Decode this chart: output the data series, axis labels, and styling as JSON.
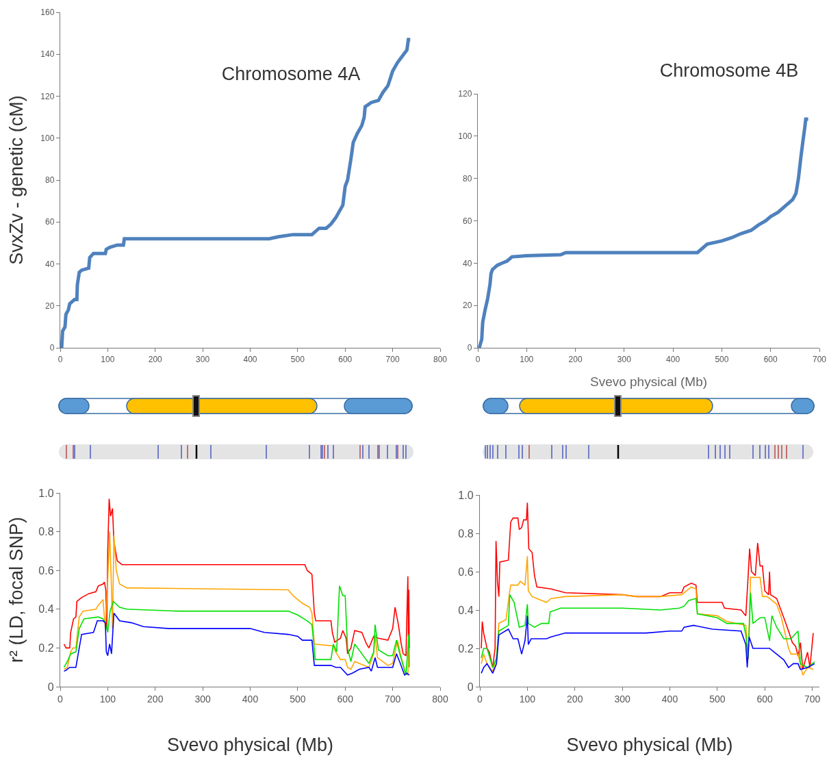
{
  "chart_data": [
    {
      "type": "line",
      "title": "Chromosome 4A",
      "ylabel": "SvxZv - genetic (cM)",
      "xlim": [
        0,
        800
      ],
      "ylim": [
        0,
        160
      ],
      "xticks": [
        0,
        100,
        200,
        300,
        400,
        500,
        600,
        700,
        800
      ],
      "yticks": [
        0,
        20,
        40,
        60,
        80,
        100,
        120,
        140,
        160
      ],
      "grid": false,
      "marker": "none",
      "line_style": "solid",
      "series": [
        {
          "color": "#4f81bd",
          "x": [
            3,
            5,
            10,
            12,
            17,
            20,
            30,
            35,
            36,
            40,
            45,
            60,
            62,
            70,
            95,
            97,
            105,
            120,
            133,
            135,
            300,
            440,
            460,
            490,
            530,
            540,
            545,
            560,
            570,
            580,
            590,
            595,
            600,
            605,
            612,
            617,
            625,
            635,
            640,
            642,
            655,
            670,
            680,
            690,
            700,
            710,
            720,
            730,
            733,
            737
          ],
          "values": [
            0,
            8,
            10,
            16,
            18,
            21,
            23,
            23,
            30,
            36,
            37,
            38,
            43,
            45,
            45,
            47,
            48,
            49,
            49,
            52,
            52,
            52,
            53,
            54,
            54,
            56,
            57,
            57,
            59,
            62,
            66,
            68,
            77,
            80,
            90,
            98,
            102,
            106,
            110,
            115,
            117,
            118,
            122,
            125,
            132,
            136,
            139,
            142,
            147,
            147
          ]
        }
      ]
    },
    {
      "type": "line",
      "title": "Chromosome 4B",
      "xlabel": "Svevo physical (Mb)",
      "xlim": [
        0,
        700
      ],
      "ylim": [
        0,
        120
      ],
      "xticks": [
        0,
        100,
        200,
        300,
        400,
        500,
        600,
        700
      ],
      "yticks": [
        0,
        20,
        40,
        60,
        80,
        100,
        120
      ],
      "grid": false,
      "marker": "none",
      "line_style": "solid",
      "series": [
        {
          "color": "#4f81bd",
          "x": [
            3,
            8,
            10,
            15,
            20,
            25,
            27,
            30,
            40,
            50,
            60,
            70,
            100,
            170,
            180,
            450,
            470,
            500,
            520,
            540,
            560,
            575,
            590,
            600,
            615,
            630,
            645,
            652,
            657,
            662,
            667,
            670,
            672,
            677
          ],
          "values": [
            0,
            4,
            12,
            18,
            23,
            30,
            35,
            37,
            39,
            40,
            41,
            43,
            43.5,
            44,
            45,
            45,
            49,
            50.5,
            52,
            54,
            55.5,
            58,
            60,
            62,
            64,
            67,
            70,
            73,
            80,
            90,
            99,
            104,
            108,
            108
          ]
        }
      ]
    },
    {
      "type": "line",
      "ylabel": "r² (LD, focal SNP)",
      "xlabel": "Svevo physical (Mb)",
      "xlim": [
        0,
        800
      ],
      "ylim": [
        0,
        1
      ],
      "xticks": [
        0,
        100,
        200,
        300,
        400,
        500,
        600,
        700,
        800
      ],
      "yticks": [
        0,
        0.2,
        0.4,
        0.6,
        0.8,
        {
          "value": 1,
          "label": "1.0"
        }
      ],
      "grid": false,
      "marker": "none",
      "line_style": "solid",
      "series": [
        {
          "color": "#ff0000",
          "x": [
            8,
            12,
            20,
            22,
            28,
            33,
            35,
            45,
            60,
            75,
            80,
            90,
            93,
            96,
            98,
            100,
            103,
            106,
            110,
            113,
            120,
            130,
            300,
            515,
            520,
            530,
            535,
            538,
            570,
            573,
            578,
            590,
            595,
            602,
            605,
            612,
            620,
            635,
            645,
            650,
            660,
            670,
            690,
            700,
            705,
            712,
            718,
            722,
            728,
            730,
            732,
            733,
            734,
            735
          ],
          "values": [
            0.22,
            0.2,
            0.2,
            0.28,
            0.35,
            0.36,
            0.44,
            0.46,
            0.48,
            0.49,
            0.52,
            0.53,
            0.54,
            0.5,
            0.3,
            0.7,
            0.97,
            0.88,
            0.92,
            0.75,
            0.65,
            0.63,
            0.63,
            0.63,
            0.6,
            0.58,
            0.38,
            0.34,
            0.34,
            0.28,
            0.23,
            0.25,
            0.29,
            0.25,
            0.17,
            0.2,
            0.29,
            0.28,
            0.22,
            0.2,
            0.26,
            0.25,
            0.24,
            0.3,
            0.41,
            0.32,
            0.22,
            0.17,
            0.16,
            0.38,
            0.57,
            0.26,
            0.5,
            0.2
          ]
        },
        {
          "color": "#ffa500",
          "x": [
            8,
            15,
            22,
            27,
            33,
            40,
            48,
            75,
            80,
            90,
            95,
            100,
            104,
            108,
            110,
            113,
            118,
            125,
            140,
            480,
            490,
            510,
            525,
            530,
            535,
            575,
            580,
            590,
            600,
            605,
            612,
            620,
            650,
            660,
            663,
            668,
            690,
            700,
            710,
            718,
            727,
            732,
            734
          ],
          "values": [
            0.09,
            0.1,
            0.18,
            0.2,
            0.2,
            0.36,
            0.39,
            0.4,
            0.42,
            0.45,
            0.3,
            0.55,
            0.8,
            0.5,
            0.3,
            0.78,
            0.6,
            0.53,
            0.51,
            0.5,
            0.47,
            0.43,
            0.41,
            0.38,
            0.22,
            0.21,
            0.18,
            0.14,
            0.14,
            0.1,
            0.09,
            0.13,
            0.1,
            0.17,
            0.27,
            0.15,
            0.11,
            0.12,
            0.24,
            0.15,
            0.07,
            0.06,
            0.21
          ]
        },
        {
          "color": "#00e000",
          "x": [
            8,
            15,
            22,
            33,
            40,
            50,
            80,
            90,
            95,
            100,
            105,
            112,
            125,
            140,
            250,
            480,
            500,
            520,
            530,
            537,
            570,
            575,
            582,
            588,
            595,
            600,
            605,
            612,
            620,
            635,
            650,
            660,
            663,
            670,
            690,
            700,
            708,
            716,
            728,
            730,
            734,
            735
          ],
          "values": [
            0.1,
            0.13,
            0.17,
            0.18,
            0.3,
            0.35,
            0.36,
            0.35,
            0.33,
            0.28,
            0.39,
            0.44,
            0.41,
            0.4,
            0.39,
            0.39,
            0.37,
            0.34,
            0.32,
            0.14,
            0.14,
            0.22,
            0.18,
            0.52,
            0.47,
            0.47,
            0.2,
            0.13,
            0.22,
            0.17,
            0.12,
            0.18,
            0.32,
            0.19,
            0.16,
            0.16,
            0.24,
            0.16,
            0.06,
            0.13,
            0.27,
            0.1
          ]
        },
        {
          "color": "#0000ff",
          "x": [
            8,
            12,
            20,
            33,
            40,
            45,
            70,
            78,
            90,
            95,
            97,
            100,
            104,
            108,
            113,
            125,
            150,
            175,
            230,
            400,
            430,
            480,
            500,
            510,
            530,
            535,
            570,
            580,
            590,
            605,
            615,
            630,
            650,
            655,
            663,
            668,
            690,
            700,
            708,
            716,
            725,
            730,
            735
          ],
          "values": [
            0.08,
            0.085,
            0.1,
            0.1,
            0.2,
            0.27,
            0.28,
            0.34,
            0.34,
            0.33,
            0.18,
            0.16,
            0.22,
            0.17,
            0.38,
            0.34,
            0.33,
            0.31,
            0.3,
            0.3,
            0.28,
            0.27,
            0.26,
            0.24,
            0.24,
            0.11,
            0.11,
            0.1,
            0.1,
            0.06,
            0.07,
            0.09,
            0.1,
            0.08,
            0.15,
            0.1,
            0.1,
            0.1,
            0.17,
            0.12,
            0.06,
            0.07,
            0.06
          ]
        }
      ]
    },
    {
      "type": "line",
      "xlabel": "Svevo physical (Mb)",
      "xlim": [
        0,
        715
      ],
      "ylim": [
        0,
        1
      ],
      "xticks": [
        0,
        100,
        200,
        300,
        400,
        500,
        600,
        700
      ],
      "yticks": [
        0,
        0.2,
        0.4,
        0.6,
        0.8,
        {
          "value": 1,
          "label": "1.0"
        }
      ],
      "grid": false,
      "marker": "none",
      "line_style": "solid",
      "series": [
        {
          "color": "#ff0000",
          "x": [
            3,
            5,
            8,
            15,
            20,
            27,
            32,
            34,
            37,
            40,
            42,
            60,
            65,
            70,
            80,
            83,
            88,
            92,
            98,
            100,
            103,
            110,
            115,
            120,
            150,
            180,
            300,
            330,
            380,
            400,
            425,
            430,
            445,
            455,
            458,
            480,
            510,
            515,
            550,
            560,
            565,
            568,
            572,
            580,
            585,
            590,
            595,
            600,
            608,
            610,
            612,
            625,
            640,
            650,
            658,
            665,
            670,
            675,
            680,
            690,
            695,
            702
          ],
          "values": [
            0.2,
            0.34,
            0.28,
            0.2,
            0.18,
            0.1,
            0.2,
            0.76,
            0.55,
            0.47,
            0.65,
            0.66,
            0.86,
            0.88,
            0.88,
            0.82,
            0.83,
            0.87,
            0.87,
            0.96,
            0.72,
            0.7,
            0.58,
            0.52,
            0.51,
            0.49,
            0.48,
            0.47,
            0.47,
            0.49,
            0.49,
            0.52,
            0.54,
            0.53,
            0.44,
            0.44,
            0.44,
            0.41,
            0.4,
            0.37,
            0.58,
            0.72,
            0.6,
            0.58,
            0.75,
            0.63,
            0.63,
            0.5,
            0.48,
            0.6,
            0.48,
            0.46,
            0.36,
            0.29,
            0.23,
            0.21,
            0.16,
            0.23,
            0.09,
            0.18,
            0.1,
            0.28
          ]
        },
        {
          "color": "#ffa500",
          "x": [
            3,
            8,
            15,
            27,
            35,
            40,
            55,
            63,
            65,
            80,
            85,
            95,
            100,
            102,
            110,
            120,
            140,
            150,
            180,
            300,
            330,
            380,
            425,
            445,
            455,
            458,
            500,
            520,
            560,
            565,
            570,
            590,
            595,
            605,
            625,
            635,
            650,
            655,
            670,
            680,
            690,
            702
          ],
          "values": [
            0.12,
            0.17,
            0.12,
            0.08,
            0.15,
            0.33,
            0.35,
            0.5,
            0.53,
            0.53,
            0.55,
            0.53,
            0.68,
            0.5,
            0.47,
            0.46,
            0.44,
            0.46,
            0.47,
            0.48,
            0.47,
            0.47,
            0.48,
            0.52,
            0.51,
            0.38,
            0.37,
            0.34,
            0.32,
            0.14,
            0.57,
            0.57,
            0.47,
            0.47,
            0.43,
            0.36,
            0.2,
            0.17,
            0.17,
            0.06,
            0.1,
            0.09
          ]
        },
        {
          "color": "#00e000",
          "x": [
            3,
            8,
            15,
            27,
            35,
            40,
            60,
            63,
            72,
            83,
            95,
            100,
            102,
            115,
            130,
            145,
            148,
            170,
            300,
            380,
            420,
            430,
            440,
            455,
            458,
            500,
            520,
            555,
            560,
            565,
            570,
            575,
            590,
            600,
            610,
            615,
            625,
            640,
            655,
            670,
            675,
            690,
            705
          ],
          "values": [
            0.15,
            0.2,
            0.2,
            0.1,
            0.15,
            0.29,
            0.32,
            0.48,
            0.44,
            0.31,
            0.32,
            0.43,
            0.33,
            0.31,
            0.33,
            0.33,
            0.39,
            0.41,
            0.41,
            0.4,
            0.41,
            0.42,
            0.45,
            0.46,
            0.38,
            0.36,
            0.33,
            0.33,
            0.27,
            0.15,
            0.49,
            0.33,
            0.36,
            0.36,
            0.24,
            0.37,
            0.31,
            0.25,
            0.25,
            0.29,
            0.12,
            0.1,
            0.13
          ]
        },
        {
          "color": "#0000ff",
          "x": [
            3,
            8,
            15,
            27,
            35,
            40,
            60,
            70,
            80,
            88,
            95,
            100,
            102,
            108,
            140,
            150,
            180,
            350,
            400,
            425,
            430,
            450,
            470,
            490,
            550,
            560,
            563,
            567,
            575,
            590,
            610,
            620,
            640,
            650,
            660,
            670,
            675,
            690,
            705
          ],
          "values": [
            0.07,
            0.1,
            0.12,
            0.07,
            0.12,
            0.27,
            0.3,
            0.25,
            0.25,
            0.17,
            0.24,
            0.37,
            0.22,
            0.25,
            0.25,
            0.26,
            0.28,
            0.28,
            0.29,
            0.29,
            0.31,
            0.32,
            0.31,
            0.3,
            0.29,
            0.22,
            0.1,
            0.26,
            0.2,
            0.2,
            0.2,
            0.18,
            0.14,
            0.1,
            0.12,
            0.12,
            0.09,
            0.1,
            0.12
          ]
        }
      ]
    }
  ]
}
